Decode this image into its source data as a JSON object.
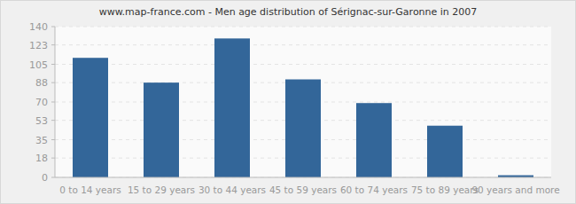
{
  "chart_data": {
    "type": "bar",
    "title": "www.map-france.com - Men age distribution of Sérignac-sur-Garonne in 2007",
    "categories": [
      "0 to 14 years",
      "15 to 29 years",
      "30 to 44 years",
      "45 to 59 years",
      "60 to 74 years",
      "75 to 89 years",
      "90 years and more"
    ],
    "values": [
      111,
      88,
      129,
      91,
      69,
      48,
      2
    ],
    "color": "#336699",
    "ylim": [
      0,
      140
    ],
    "yticks": [
      0,
      18,
      35,
      53,
      70,
      88,
      105,
      123,
      140
    ],
    "grid": true
  }
}
